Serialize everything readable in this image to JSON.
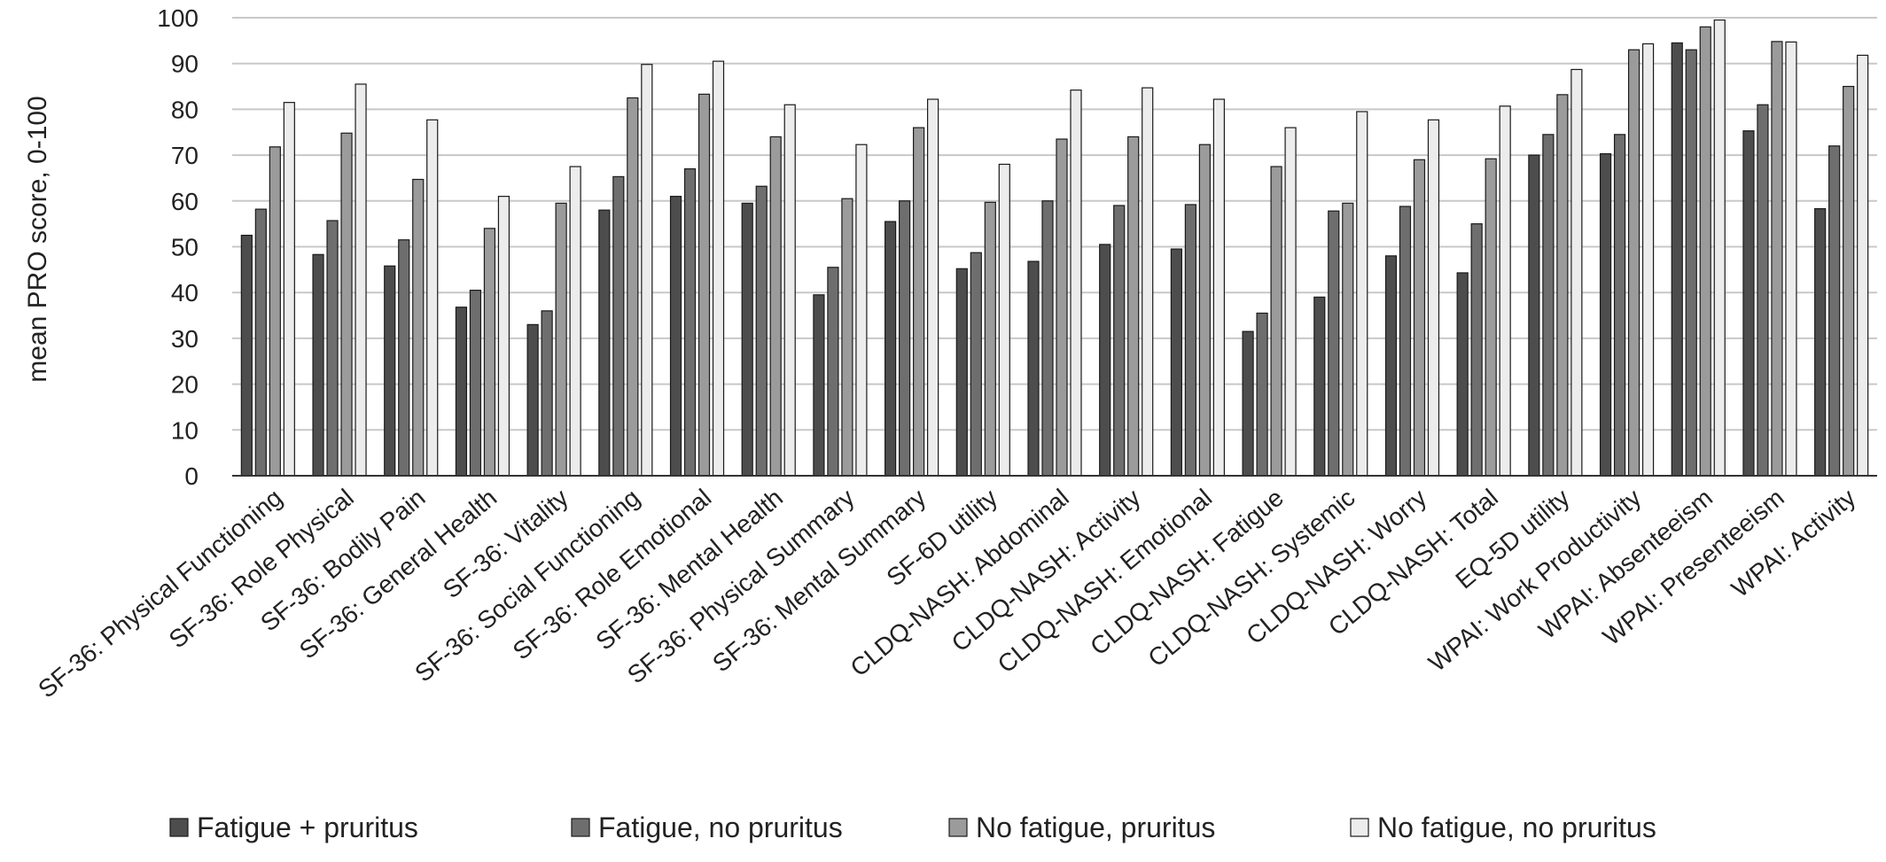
{
  "chart_data": {
    "type": "bar",
    "title": "",
    "xlabel": "",
    "ylabel": "mean PRO score, 0-100",
    "ylim": [
      0,
      100
    ],
    "yticks": [
      0,
      10,
      20,
      30,
      40,
      50,
      60,
      70,
      80,
      90,
      100
    ],
    "grid": true,
    "legend_position": "bottom",
    "categories": [
      "SF-36: Physical Functioning",
      "SF-36: Role Physical",
      "SF-36: Bodily Pain",
      "SF-36: General Health",
      "SF-36: Vitality",
      "SF-36: Social Functioning",
      "SF-36: Role Emotional",
      "SF-36: Mental Health",
      "SF-36: Physical Summary",
      "SF-36: Mental Summary",
      "SF-6D utility",
      "CLDQ-NASH: Abdominal",
      "CLDQ-NASH: Activity",
      "CLDQ-NASH: Emotional",
      "CLDQ-NASH: Fatigue",
      "CLDQ-NASH: Systemic",
      "CLDQ-NASH: Worry",
      "CLDQ-NASH: Total",
      "EQ-5D utility",
      "WPAI: Work Productivity",
      "WPAI: Absenteeism",
      "WPAI: Presenteeism",
      "WPAI: Activity"
    ],
    "series": [
      {
        "name": "Fatigue + pruritus",
        "color": "#4d4d4d",
        "values": [
          52.5,
          48.3,
          45.8,
          36.8,
          33.0,
          58.0,
          61.0,
          59.5,
          39.5,
          55.5,
          45.2,
          46.8,
          50.5,
          49.5,
          31.5,
          39.0,
          48.0,
          44.3,
          70.0,
          70.3,
          94.5,
          75.3,
          58.3
        ]
      },
      {
        "name": "Fatigue, no pruritus",
        "color": "#6e6e6e",
        "values": [
          58.2,
          55.7,
          51.5,
          40.5,
          36.0,
          65.3,
          67.0,
          63.2,
          45.5,
          60.0,
          48.7,
          60.0,
          59.0,
          59.2,
          35.5,
          57.8,
          58.8,
          55.0,
          74.5,
          74.5,
          93.0,
          81.0,
          72.0
        ]
      },
      {
        "name": "No fatigue, pruritus",
        "color": "#9b9b9b",
        "values": [
          71.8,
          74.8,
          64.7,
          54.0,
          59.5,
          82.5,
          83.3,
          74.0,
          60.5,
          76.0,
          59.7,
          73.5,
          74.0,
          72.3,
          67.5,
          59.5,
          69.0,
          69.2,
          83.2,
          93.0,
          98.0,
          94.8,
          85.0
        ]
      },
      {
        "name": "No fatigue, no pruritus",
        "color": "#ececec",
        "values": [
          81.5,
          85.5,
          77.7,
          61.0,
          67.5,
          89.8,
          90.5,
          81.0,
          72.3,
          82.2,
          68.0,
          84.2,
          84.7,
          82.2,
          76.0,
          79.5,
          77.7,
          80.7,
          88.7,
          94.3,
          99.5,
          94.7,
          91.8
        ]
      }
    ]
  }
}
